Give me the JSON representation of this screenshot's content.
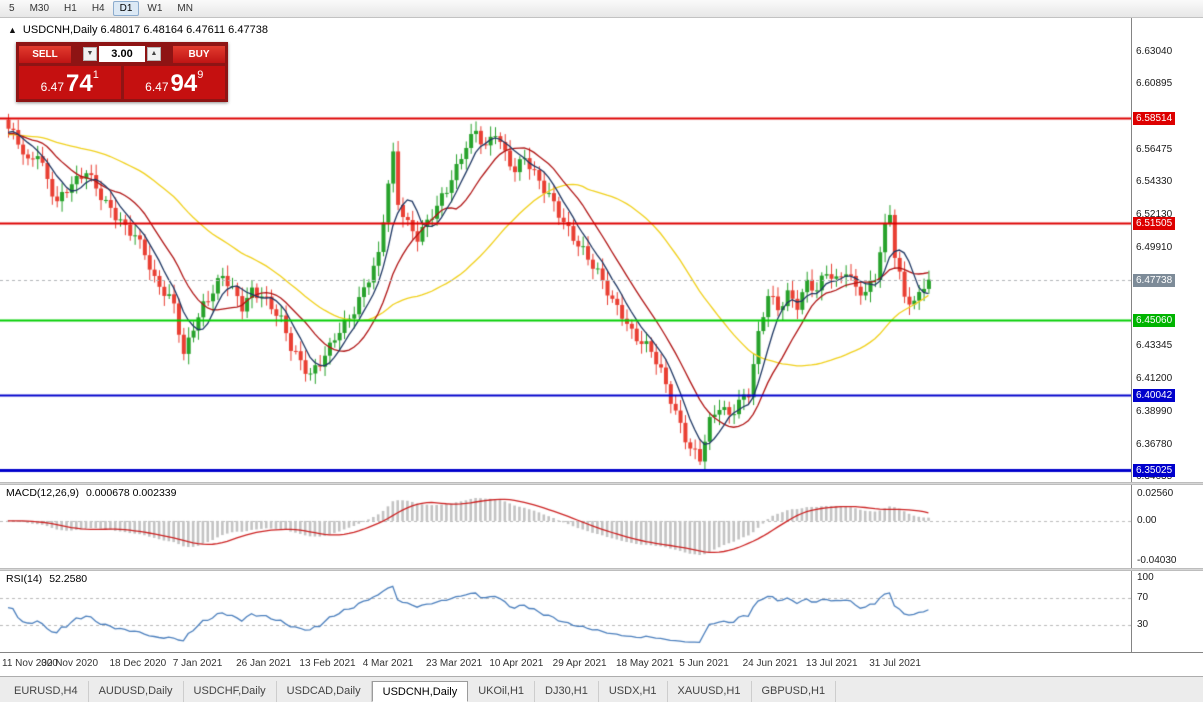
{
  "toolbar": {
    "timeframes": [
      "5",
      "M30",
      "H1",
      "H4",
      "D1",
      "W1",
      "MN"
    ],
    "active": "D1"
  },
  "chart": {
    "title_line": "USDCNH,Daily 6.48017 6.48164 6.47611 6.47738"
  },
  "icons": {
    "panel_toggle": "▲",
    "spinner_down": "▼",
    "spinner_up": "▲"
  },
  "trade_panel": {
    "sell_label": "SELL",
    "buy_label": "BUY",
    "volume": "3.00",
    "sell": {
      "big": "6.47",
      "mid": "74",
      "sup": "1"
    },
    "buy": {
      "big": "6.47",
      "mid": "94",
      "sup": "9"
    }
  },
  "price_axis": {
    "ticks": [
      "6.63040",
      "6.60895",
      "6.56475",
      "6.54330",
      "6.52130",
      "6.49910",
      "6.43345",
      "6.41200",
      "6.38990",
      "6.36780",
      "6.34635"
    ],
    "levels": [
      {
        "label": "6.58514",
        "type": "red"
      },
      {
        "label": "6.51505",
        "type": "red"
      },
      {
        "label": "6.45060",
        "type": "green"
      },
      {
        "label": "6.40042",
        "type": "blue"
      },
      {
        "label": "6.35025",
        "type": "blue"
      }
    ],
    "current": {
      "label": "6.47738",
      "type": "current"
    }
  },
  "macd": {
    "label": "MACD(12,26,9)",
    "values": "0.000678 0.002339",
    "axis": [
      "0.02560",
      "0.00",
      "-0.04030"
    ]
  },
  "rsi": {
    "label": "RSI(14)",
    "value": "52.2580",
    "axis": [
      "100",
      "70",
      "30"
    ],
    "levels": [
      70,
      30
    ]
  },
  "tabbar": {
    "active": "USDCNH,Daily",
    "items": [
      "EURUSD,H4",
      "AUDUSD,Daily",
      "USDCHF,Daily",
      "USDCAD,Daily",
      "USDCNH,Daily",
      "UKOil,H1",
      "DJ30,H1",
      "USDX,H1",
      "XAUUSD,H1",
      "GBPUSD,H1"
    ]
  },
  "colors": {
    "bull": "#27a22b",
    "bear": "#e93f33",
    "level_red": "#dd0000",
    "level_green": "#00ce00",
    "level_blue": "#0000cc",
    "badge_red": "#dd0000",
    "badge_green": "#00b400",
    "badge_blue": "#0000cc",
    "badge_current": "#7d8b98",
    "macd_hist": "#c3c3c3",
    "macd_signal": "#cc2222",
    "rsi_line": "#4b7fbd",
    "current_dash": "#b0b4b8"
  },
  "chart_data": {
    "type": "candlestick",
    "symbol": "USDCNH",
    "timeframe": "Daily",
    "bars": 190,
    "visible_price_range": [
      6.3422,
      6.6522
    ],
    "current_price": 6.47738,
    "ohlc_current": {
      "open": 6.48017,
      "high": 6.48164,
      "low": 6.47611,
      "close": 6.47738
    },
    "close_waypoints": [
      [
        0,
        6.576
      ],
      [
        2,
        6.568
      ],
      [
        4,
        6.556
      ],
      [
        6,
        6.565
      ],
      [
        8,
        6.545
      ],
      [
        10,
        6.527
      ],
      [
        12,
        6.536
      ],
      [
        14,
        6.543
      ],
      [
        16,
        6.552
      ],
      [
        18,
        6.541
      ],
      [
        20,
        6.528
      ],
      [
        22,
        6.518
      ],
      [
        24,
        6.51
      ],
      [
        26,
        6.508
      ],
      [
        28,
        6.498
      ],
      [
        30,
        6.478
      ],
      [
        32,
        6.468
      ],
      [
        34,
        6.458
      ],
      [
        36,
        6.426
      ],
      [
        38,
        6.448
      ],
      [
        40,
        6.462
      ],
      [
        42,
        6.47
      ],
      [
        44,
        6.478
      ],
      [
        46,
        6.469
      ],
      [
        48,
        6.46
      ],
      [
        50,
        6.472
      ],
      [
        52,
        6.468
      ],
      [
        54,
        6.458
      ],
      [
        56,
        6.448
      ],
      [
        58,
        6.432
      ],
      [
        60,
        6.424
      ],
      [
        62,
        6.416
      ],
      [
        64,
        6.422
      ],
      [
        66,
        6.43
      ],
      [
        68,
        6.442
      ],
      [
        70,
        6.452
      ],
      [
        72,
        6.466
      ],
      [
        74,
        6.48
      ],
      [
        76,
        6.492
      ],
      [
        78,
        6.54
      ],
      [
        79,
        6.558
      ],
      [
        80,
        6.528
      ],
      [
        82,
        6.516
      ],
      [
        84,
        6.508
      ],
      [
        86,
        6.516
      ],
      [
        88,
        6.524
      ],
      [
        90,
        6.536
      ],
      [
        92,
        6.552
      ],
      [
        94,
        6.57
      ],
      [
        96,
        6.578
      ],
      [
        98,
        6.564
      ],
      [
        100,
        6.574
      ],
      [
        102,
        6.56
      ],
      [
        104,
        6.552
      ],
      [
        106,
        6.562
      ],
      [
        108,
        6.548
      ],
      [
        110,
        6.536
      ],
      [
        112,
        6.526
      ],
      [
        114,
        6.516
      ],
      [
        116,
        6.508
      ],
      [
        118,
        6.498
      ],
      [
        120,
        6.486
      ],
      [
        122,
        6.474
      ],
      [
        124,
        6.462
      ],
      [
        126,
        6.456
      ],
      [
        128,
        6.444
      ],
      [
        130,
        6.436
      ],
      [
        132,
        6.428
      ],
      [
        134,
        6.414
      ],
      [
        136,
        6.398
      ],
      [
        138,
        6.382
      ],
      [
        140,
        6.366
      ],
      [
        142,
        6.357
      ],
      [
        144,
        6.38
      ],
      [
        146,
        6.392
      ],
      [
        148,
        6.388
      ],
      [
        150,
        6.398
      ],
      [
        152,
        6.402
      ],
      [
        154,
        6.438
      ],
      [
        156,
        6.466
      ],
      [
        158,
        6.458
      ],
      [
        160,
        6.47
      ],
      [
        162,
        6.462
      ],
      [
        164,
        6.474
      ],
      [
        166,
        6.468
      ],
      [
        168,
        6.482
      ],
      [
        170,
        6.478
      ],
      [
        172,
        6.486
      ],
      [
        174,
        6.472
      ],
      [
        176,
        6.466
      ],
      [
        178,
        6.478
      ],
      [
        180,
        6.512
      ],
      [
        181,
        6.524
      ],
      [
        182,
        6.496
      ],
      [
        184,
        6.468
      ],
      [
        186,
        6.46
      ],
      [
        188,
        6.472
      ],
      [
        189,
        6.477
      ]
    ],
    "levels": [
      {
        "price": 6.58514,
        "color": "#dd0000",
        "width": 2
      },
      {
        "price": 6.51505,
        "color": "#dd0000",
        "width": 2
      },
      {
        "price": 6.4506,
        "color": "#00ce00",
        "width": 2
      },
      {
        "price": 6.40042,
        "color": "#0000cc",
        "width": 2
      },
      {
        "price": 6.35025,
        "color": "#0000cc",
        "width": 3
      }
    ],
    "moving_averages": [
      {
        "period": 40,
        "color": "#f0d01c"
      },
      {
        "period": 13,
        "color": "#b01515"
      },
      {
        "period": 6,
        "color": "#1f3864"
      }
    ],
    "macd_params": {
      "fast": 12,
      "slow": 26,
      "signal": 9
    },
    "rsi_params": {
      "period": 14
    },
    "date_labels": [
      {
        "label": "11 Nov 2020",
        "bar": 0
      },
      {
        "label": "30 Nov 2020",
        "bar": 13
      },
      {
        "label": "18 Dec 2020",
        "bar": 27
      },
      {
        "label": "7 Jan 2021",
        "bar": 40
      },
      {
        "label": "26 Jan 2021",
        "bar": 53
      },
      {
        "label": "13 Feb 2021",
        "bar": 66
      },
      {
        "label": "4 Mar 2021",
        "bar": 79
      },
      {
        "label": "23 Mar 2021",
        "bar": 92
      },
      {
        "label": "10 Apr 2021",
        "bar": 105
      },
      {
        "label": "29 Apr 2021",
        "bar": 118
      },
      {
        "label": "18 May 2021",
        "bar": 131
      },
      {
        "label": "5 Jun 2021",
        "bar": 144
      },
      {
        "label": "24 Jun 2021",
        "bar": 157
      },
      {
        "label": "13 Jul 2021",
        "bar": 170
      },
      {
        "label": "31 Jul 2021",
        "bar": 183
      }
    ]
  }
}
